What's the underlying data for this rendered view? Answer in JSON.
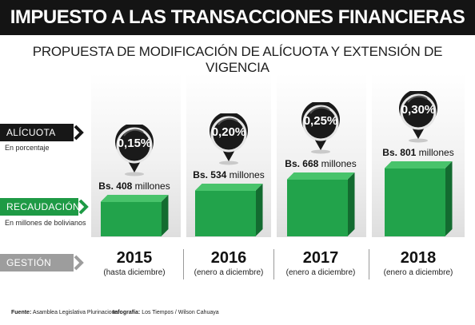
{
  "header": {
    "title": "IMPUESTO A LAS TRANSACCIONES FINANCIERAS (ITF)",
    "subtitle": "PROPUESTA DE MODIFICACIÓN DE ALÍCUOTA Y EXTENSIÓN DE VIGENCIA"
  },
  "row_labels": {
    "alicuota": "ALÍCUOTA",
    "alicuota_sub": "En porcentaje",
    "recaudacion": "RECAUDACIÓN",
    "recaudacion_sub": "En millones de bolivianos",
    "gestion": "GESTIÓN"
  },
  "colors": {
    "bar": "#22a34b",
    "bar_top": "#48c36b",
    "bar_side": "#136b30",
    "title_bg": "#141414",
    "recaudacion_pill": "#1e9a45",
    "gestion_pill": "#9d9d9d"
  },
  "chart_data": {
    "type": "bar",
    "categories": [
      "2015",
      "2016",
      "2017",
      "2018"
    ],
    "periods": [
      "(hasta diciembre)",
      "(enero a diciembre)",
      "(enero a diciembre)",
      "(enero a diciembre)"
    ],
    "series": [
      {
        "values": [
          408,
          534,
          668,
          801
        ],
        "value_labels": [
          "408",
          "534",
          "668",
          "801"
        ]
      }
    ],
    "amount_prefix": "Bs.",
    "amount_unit": "millones",
    "rates": [
      "0,15%",
      "0,20%",
      "0,25%",
      "0,30%"
    ]
  },
  "footer": {
    "source_label": "Fuente:",
    "source_value": "Asamblea Legislativa Plurinacional",
    "credit_label": "Infografía:",
    "credit_value": "Los Tiempos / Wilson Cahuaya"
  }
}
